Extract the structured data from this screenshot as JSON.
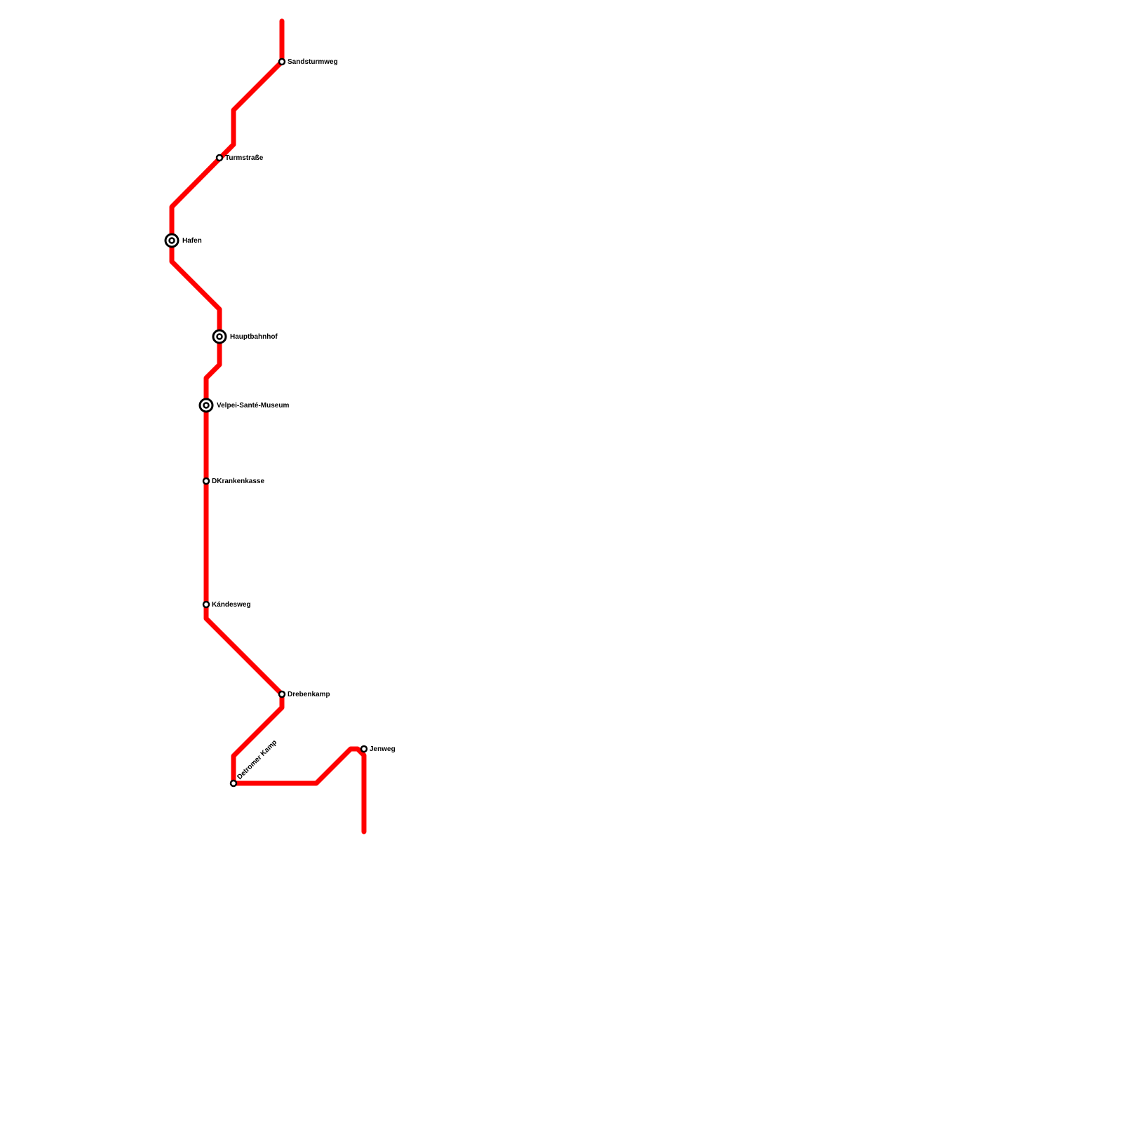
{
  "line": {
    "color": "#ff0000"
  },
  "stations": [
    {
      "name": "Sandsturmweg",
      "type": "stop"
    },
    {
      "name": "Turmstraße",
      "type": "stop"
    },
    {
      "name": "Hafen",
      "type": "interchange"
    },
    {
      "name": "Hauptbahnhof",
      "type": "interchange"
    },
    {
      "name": "Velpei-Santé-Museum",
      "type": "interchange"
    },
    {
      "name": "DKrankenkasse",
      "type": "stop"
    },
    {
      "name": "Kándesweg",
      "type": "stop"
    },
    {
      "name": "Drebenkamp",
      "type": "stop"
    },
    {
      "name": "Detromer Kamp",
      "type": "stop"
    },
    {
      "name": "Jenweg",
      "type": "stop"
    }
  ]
}
